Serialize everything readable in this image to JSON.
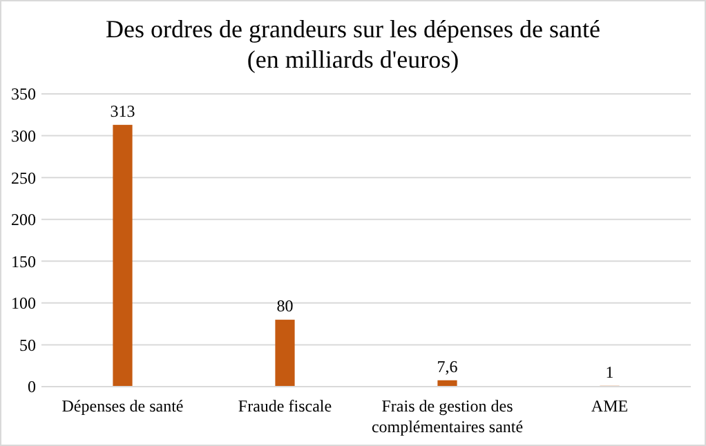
{
  "chart_data": {
    "type": "bar",
    "title": "Des ordres de grandeurs sur les dépenses de santé\n(en milliards d'euros)",
    "categories": [
      "Dépenses de santé",
      "Fraude fiscale",
      "Frais de gestion des complémentaires santé",
      "AME"
    ],
    "values": [
      313,
      80,
      7.6,
      1
    ],
    "value_labels": [
      "313",
      "80",
      "7,6",
      "1"
    ],
    "color": "#c55a11",
    "ylim": [
      0,
      350
    ],
    "yticks": [
      0,
      50,
      100,
      150,
      200,
      250,
      300,
      350
    ],
    "grid": "y"
  }
}
